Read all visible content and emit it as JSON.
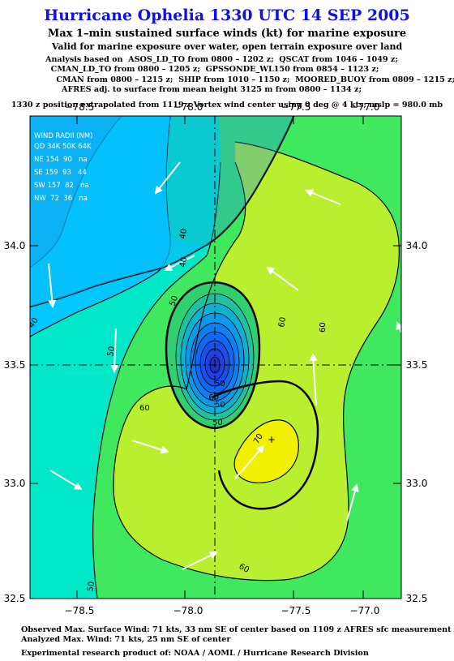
{
  "header": {
    "title": "Hurricane Ophelia 1330 UTC 14 SEP 2005",
    "subtitle": "Max 1–min sustained surface winds (kt) for marine exposure",
    "subtitle2": "Valid for marine exposure over water, open terrain exposure over land",
    "analysis_lines": [
      "Analysis based on  ASOS_LD_TO from 0800 – 1202 z;  QSCAT from 1046 – 1049 z;",
      "  CMAN_LD_TO from 0800 – 1205 z;  GPSSONDE_WL150 from 0854 – 1123 z;",
      "    CMAN from 0800 – 1215 z;  SHIP from 1010 – 1150 z;  MOORED_BUOY from 0809 – 1215 z;",
      "      AFRES adj. to surface from mean height 3125 m from 0800 – 1134 z;"
    ],
    "position_note": "1330 z position extrapolated from 1119 z Vortex wind center using 0 deg @ 4 kts; mslp = 980.0 mb"
  },
  "map": {
    "lon_ticks": [
      "−78.5",
      "−78.0",
      "−77.5",
      "−77.0"
    ],
    "lat_ticks": [
      "34.0",
      "33.5",
      "33.0",
      "32.5"
    ],
    "lon_range": [
      -78.85,
      -76.75
    ],
    "lat_range": [
      32.5,
      34.4
    ],
    "center": {
      "lon": -77.8,
      "lat": 33.5
    },
    "max_wind_marker": "+",
    "contour_labels": [
      "40",
      "40",
      "50",
      "50",
      "50",
      "50",
      "50",
      "60",
      "60",
      "60",
      "60",
      "60",
      "70",
      "40",
      "50"
    ],
    "wind_radii": {
      "title": "WIND RADII (NM)",
      "header": "QD 34K 50K 64K",
      "rows": [
        "NE 154  90   na",
        "SE 159  93   44",
        "SW 157  82   na",
        "NW  72  36   na"
      ]
    },
    "colors": {
      "lt30": "#1e8ee0",
      "w30_40": "#00c8ff",
      "w40_50": "#00e8c8",
      "w50_60": "#40e860",
      "w60_70": "#b8f030",
      "w70plus": "#f0f000",
      "inner_blue": "#2040e0"
    }
  },
  "footer": {
    "observed": "Observed Max. Surface Wind: 71 kts, 33 nm SE of center based on 1109 z AFRES sfc measurement",
    "analyzed": "Analyzed Max. Wind: 71 kts, 25 nm SE of center",
    "credit": "Experimental research product of:  NOAA / AOML / Hurricane Research Division"
  }
}
